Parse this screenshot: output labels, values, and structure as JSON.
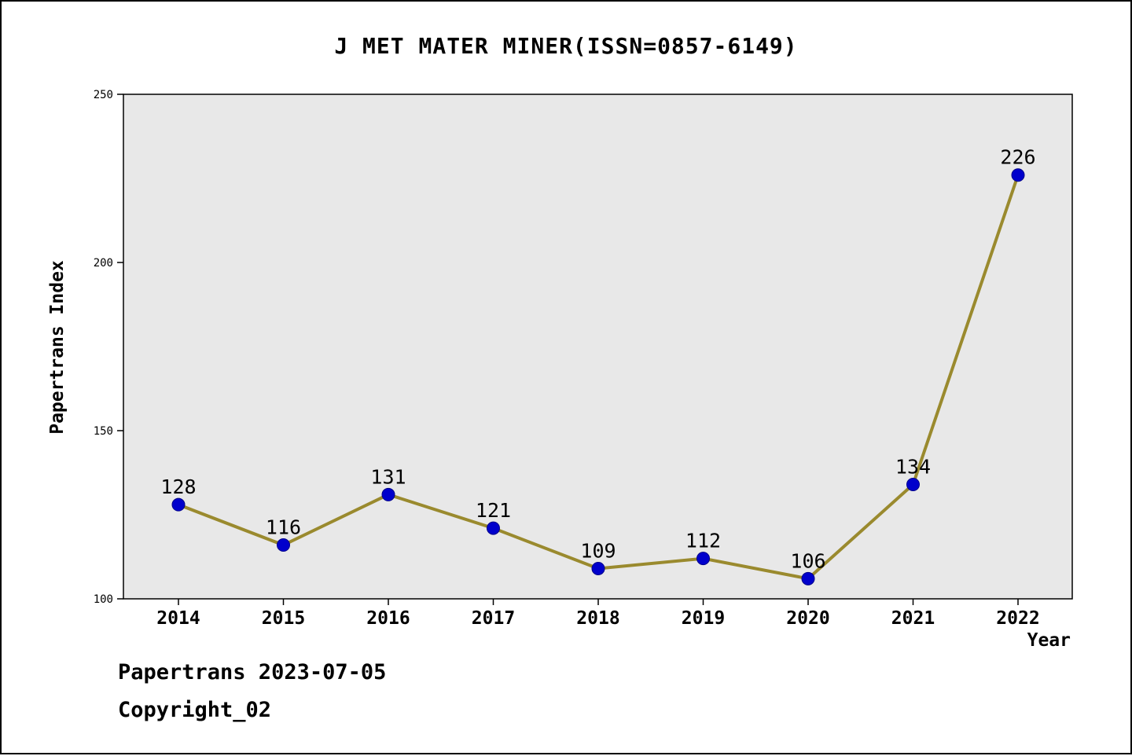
{
  "title": "J MET MATER MINER(ISSN=0857-6149)",
  "footer": {
    "line1": "Papertrans 2023-07-05",
    "line2": "Copyright_02"
  },
  "chart_data": {
    "type": "line",
    "title": "J MET MATER MINER(ISSN=0857-6149)",
    "x": [
      2014,
      2015,
      2016,
      2017,
      2018,
      2019,
      2020,
      2021,
      2022
    ],
    "values": [
      128,
      116,
      131,
      121,
      109,
      112,
      106,
      134,
      226
    ],
    "xlabel": "Year",
    "ylabel": "Papertrans Index",
    "ylim": [
      100,
      250
    ],
    "yticks": [
      100,
      150,
      200,
      250
    ],
    "grid": false,
    "legend": "none",
    "line_color": "#9a8a2e",
    "marker_color": "#0000cc",
    "marker_edge_color": "#00008b",
    "plot_bg": "#e8e8e8",
    "axis_color": "#000000"
  }
}
